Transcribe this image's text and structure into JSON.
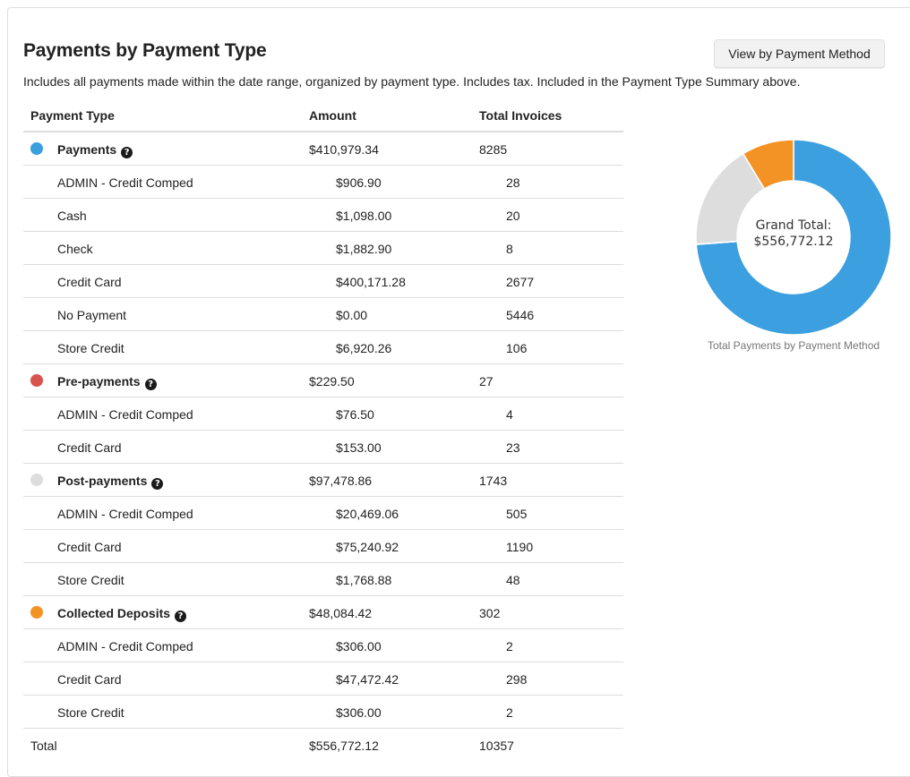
{
  "header": {
    "title": "Payments by Payment Type",
    "subtitle": "Includes all payments made within the date range, organized by payment type. Includes tax. Included in the Payment Type Summary above.",
    "view_button_label": "View by Payment Method"
  },
  "table": {
    "columns": [
      "Payment Type",
      "Amount",
      "Total Invoices"
    ],
    "groups": [
      {
        "name": "Payments",
        "color": "#3b9fe0",
        "amount": "$410,979.34",
        "invoices": "8285",
        "help_icon": "question-circle-icon",
        "items": [
          {
            "name": "ADMIN - Credit Comped",
            "amount": "$906.90",
            "invoices": "28"
          },
          {
            "name": "Cash",
            "amount": "$1,098.00",
            "invoices": "20"
          },
          {
            "name": "Check",
            "amount": "$1,882.90",
            "invoices": "8"
          },
          {
            "name": "Credit Card",
            "amount": "$400,171.28",
            "invoices": "2677"
          },
          {
            "name": "No Payment",
            "amount": "$0.00",
            "invoices": "5446"
          },
          {
            "name": "Store Credit",
            "amount": "$6,920.26",
            "invoices": "106"
          }
        ]
      },
      {
        "name": "Pre-payments",
        "color": "#d9534f",
        "amount": "$229.50",
        "invoices": "27",
        "help_icon": "question-circle-icon",
        "items": [
          {
            "name": "ADMIN - Credit Comped",
            "amount": "$76.50",
            "invoices": "4"
          },
          {
            "name": "Credit Card",
            "amount": "$153.00",
            "invoices": "23"
          }
        ]
      },
      {
        "name": "Post-payments",
        "color": "#dddddd",
        "amount": "$97,478.86",
        "invoices": "1743",
        "help_icon": "question-circle-icon",
        "items": [
          {
            "name": "ADMIN - Credit Comped",
            "amount": "$20,469.06",
            "invoices": "505"
          },
          {
            "name": "Credit Card",
            "amount": "$75,240.92",
            "invoices": "1190"
          },
          {
            "name": "Store Credit",
            "amount": "$1,768.88",
            "invoices": "48"
          }
        ]
      },
      {
        "name": "Collected Deposits",
        "color": "#f39325",
        "amount": "$48,084.42",
        "invoices": "302",
        "help_icon": "question-circle-icon",
        "items": [
          {
            "name": "ADMIN - Credit Comped",
            "amount": "$306.00",
            "invoices": "2"
          },
          {
            "name": "Credit Card",
            "amount": "$47,472.42",
            "invoices": "298"
          },
          {
            "name": "Store Credit",
            "amount": "$306.00",
            "invoices": "2"
          }
        ]
      }
    ],
    "total": {
      "label": "Total",
      "amount": "$556,772.12",
      "invoices": "10357"
    }
  },
  "chart_data": {
    "type": "pie",
    "variant": "donut",
    "center_label": "Grand Total:",
    "center_value": "$556,772.12",
    "caption": "Total Payments by Payment Method",
    "categories": [
      "Payments",
      "Pre-payments",
      "Post-payments",
      "Collected Deposits"
    ],
    "values": [
      410979.34,
      229.5,
      97478.86,
      48084.42
    ],
    "colors": [
      "#3b9fe0",
      "#d9534f",
      "#dddddd",
      "#f39325"
    ]
  }
}
